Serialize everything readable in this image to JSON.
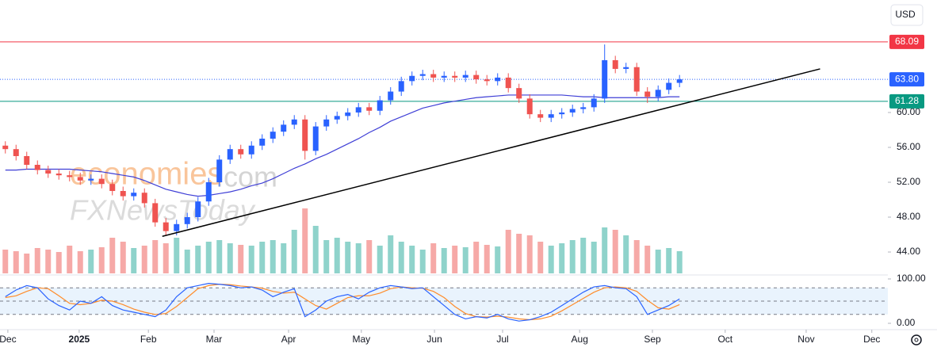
{
  "chart_data": {
    "type": "candlestick",
    "currency": "USD",
    "watermark": [
      "economies",
      ".com",
      "FXNewsToday"
    ],
    "up_color": "#2962ff",
    "down_color": "#ef5350",
    "volume_up_color": "#8fd3cb",
    "volume_down_color": "#f6a9a7",
    "x": [
      0,
      3,
      6,
      9,
      12,
      15,
      18,
      21,
      24,
      27,
      30,
      33,
      36,
      39,
      42,
      45,
      48,
      51,
      54,
      57,
      60,
      63,
      66,
      69,
      72,
      75,
      78,
      81,
      84,
      87,
      90,
      93,
      96,
      99,
      102,
      105,
      108,
      111,
      114,
      117,
      120,
      123,
      126,
      129,
      132,
      135,
      138,
      141,
      144,
      147,
      150,
      153,
      156,
      159,
      162,
      165,
      168,
      171,
      174,
      177,
      180,
      183,
      186,
      189
    ],
    "open": [
      56.2,
      55.8,
      55.0,
      54.0,
      53.4,
      53.0,
      52.8,
      52.6,
      52.2,
      52.4,
      51.8,
      51.0,
      50.4,
      50.8,
      49.6,
      47.4,
      46.4,
      47.2,
      48.0,
      49.8,
      52.0,
      54.6,
      55.8,
      55.2,
      56.2,
      57.0,
      57.8,
      58.6,
      59.2,
      55.6,
      58.4,
      59.2,
      59.6,
      60.0,
      60.6,
      60.2,
      61.4,
      62.4,
      63.6,
      64.2,
      64.4,
      64.0,
      64.2,
      64.0,
      64.3,
      63.8,
      63.6,
      64.0,
      62.8,
      61.6,
      59.8,
      59.4,
      59.8,
      60.0,
      60.4,
      60.6,
      61.6,
      66.0,
      65.0,
      65.2,
      62.4,
      61.8,
      62.6,
      63.4
    ],
    "high": [
      56.7,
      56.3,
      55.5,
      54.5,
      53.9,
      53.5,
      53.3,
      53.1,
      52.9,
      52.9,
      52.3,
      51.5,
      51.3,
      51.3,
      50.1,
      47.9,
      47.7,
      48.5,
      50.3,
      52.5,
      55.1,
      56.3,
      56.3,
      56.7,
      57.5,
      58.3,
      59.1,
      59.7,
      59.7,
      58.9,
      59.7,
      60.1,
      60.5,
      61.1,
      61.1,
      61.9,
      62.9,
      64.1,
      64.7,
      64.9,
      64.9,
      64.7,
      64.7,
      64.8,
      64.8,
      64.3,
      64.5,
      64.5,
      63.3,
      62.1,
      60.3,
      60.3,
      60.5,
      60.9,
      61.1,
      62.1,
      67.8,
      66.5,
      65.7,
      65.7,
      62.9,
      63.1,
      63.9,
      64.3
    ],
    "low": [
      55.3,
      54.5,
      53.5,
      52.9,
      52.5,
      52.3,
      52.1,
      51.7,
      51.7,
      51.3,
      50.5,
      49.9,
      49.9,
      49.1,
      46.9,
      45.9,
      45.9,
      46.7,
      47.5,
      49.3,
      51.5,
      54.1,
      54.7,
      54.7,
      55.7,
      56.5,
      57.3,
      58.1,
      54.6,
      55.1,
      57.9,
      58.7,
      59.1,
      59.5,
      59.7,
      59.7,
      60.9,
      61.9,
      63.1,
      63.7,
      63.5,
      63.5,
      63.5,
      63.5,
      63.3,
      63.1,
      63.1,
      62.3,
      61.1,
      59.3,
      58.9,
      58.9,
      59.3,
      59.5,
      59.9,
      60.1,
      61.1,
      64.5,
      64.5,
      61.9,
      61.1,
      61.3,
      62.1,
      62.9
    ],
    "close": [
      55.8,
      55.0,
      54.0,
      53.4,
      53.0,
      52.8,
      52.6,
      52.2,
      52.4,
      51.8,
      51.0,
      50.4,
      50.8,
      49.6,
      47.4,
      46.4,
      47.2,
      48.0,
      49.8,
      52.0,
      54.6,
      55.8,
      55.2,
      56.2,
      57.0,
      57.8,
      58.6,
      59.2,
      55.6,
      58.4,
      59.2,
      59.6,
      60.0,
      60.6,
      60.2,
      61.4,
      62.4,
      63.6,
      64.2,
      64.4,
      64.0,
      64.2,
      64.0,
      64.3,
      63.8,
      63.6,
      64.0,
      62.8,
      61.6,
      59.8,
      59.4,
      59.8,
      60.0,
      60.4,
      60.6,
      61.6,
      66.0,
      65.0,
      65.2,
      62.4,
      61.8,
      62.6,
      63.4,
      63.8
    ],
    "volume": [
      30,
      28,
      25,
      32,
      30,
      27,
      35,
      28,
      30,
      33,
      45,
      40,
      32,
      35,
      42,
      38,
      45,
      30,
      35,
      40,
      42,
      38,
      36,
      35,
      40,
      42,
      38,
      55,
      82,
      60,
      42,
      45,
      40,
      38,
      42,
      35,
      48,
      40,
      35,
      30,
      38,
      32,
      35,
      33,
      40,
      36,
      34,
      55,
      50,
      48,
      40,
      35,
      38,
      42,
      45,
      40,
      58,
      55,
      48,
      42,
      35,
      30,
      32,
      28
    ],
    "volume_lim": [
      0,
      100
    ],
    "ma": {
      "color": "#3f3fd6",
      "values": [
        53.4,
        53.4,
        53.5,
        53.5,
        53.5,
        53.5,
        53.5,
        53.4,
        53.3,
        53.2,
        53.0,
        52.8,
        52.6,
        52.2,
        51.7,
        51.2,
        50.9,
        50.6,
        50.4,
        50.5,
        50.7,
        50.9,
        51.2,
        51.6,
        51.9,
        52.4,
        53.0,
        53.6,
        54.1,
        54.7,
        55.2,
        55.8,
        56.4,
        57.0,
        57.7,
        58.3,
        59.0,
        59.5,
        60.0,
        60.5,
        60.8,
        61.1,
        61.3,
        61.5,
        61.7,
        61.8,
        61.9,
        62.0,
        62.0,
        62.0,
        62.0,
        62.0,
        62.0,
        61.9,
        61.8,
        61.8,
        61.7,
        61.7,
        61.7,
        61.7,
        61.7,
        61.7,
        61.8,
        61.8
      ]
    },
    "trendline": {
      "color": "#000000",
      "x": [
        44,
        228.4
      ],
      "values": [
        45.8,
        65.0
      ]
    },
    "levels": [
      {
        "value": 68.09,
        "color": "#f23645",
        "style": "solid"
      },
      {
        "value": 63.8,
        "label": "63.80",
        "color": "#2962ff",
        "style": "dotted"
      },
      {
        "value": 61.28,
        "color": "#089981",
        "style": "solid"
      }
    ],
    "xlim": [
      -1.5,
      247.4
    ],
    "xticks": [
      {
        "value": 0.7,
        "label": "Dec"
      },
      {
        "value": 20.7,
        "label": "2025"
      },
      {
        "value": 40.1,
        "label": "Feb"
      },
      {
        "value": 58.5,
        "label": "Mar"
      },
      {
        "value": 79.4,
        "label": "Apr"
      },
      {
        "value": 99.8,
        "label": "May"
      },
      {
        "value": 120.3,
        "label": "Jun"
      },
      {
        "value": 139.4,
        "label": "Jul"
      },
      {
        "value": 161,
        "label": "Aug"
      },
      {
        "value": 181.4,
        "label": "Sep"
      },
      {
        "value": 201.8,
        "label": "Oct"
      },
      {
        "value": 224.5,
        "label": "Nov"
      },
      {
        "value": 242.9,
        "label": "Dec"
      }
    ],
    "ylim": [
      41.55,
      72.9
    ],
    "yticks": [
      {
        "value": 44,
        "label": "44.00"
      },
      {
        "value": 48,
        "label": "48.00"
      },
      {
        "value": 52,
        "label": "52.00"
      },
      {
        "value": 56,
        "label": "56.00"
      },
      {
        "value": 60,
        "label": "60.00"
      }
    ],
    "stoch": {
      "ylim": [
        0,
        100
      ],
      "yticks": [
        {
          "value": 0,
          "label": "0.00"
        },
        {
          "value": 100,
          "label": "100.00"
        }
      ],
      "bands": [
        20,
        50,
        80
      ],
      "k": {
        "color": "#2962ff",
        "values": [
          60,
          75,
          85,
          80,
          55,
          40,
          30,
          50,
          45,
          60,
          40,
          30,
          25,
          20,
          15,
          30,
          60,
          80,
          85,
          90,
          88,
          85,
          80,
          82,
          75,
          60,
          70,
          78,
          15,
          30,
          50,
          60,
          65,
          55,
          70,
          80,
          85,
          82,
          78,
          80,
          60,
          40,
          20,
          10,
          15,
          12,
          20,
          10,
          5,
          8,
          15,
          25,
          40,
          55,
          70,
          82,
          85,
          80,
          78,
          60,
          20,
          30,
          40,
          55
        ]
      },
      "d": {
        "color": "#ff8c2a",
        "values": [
          58,
          62,
          72,
          80,
          78,
          62,
          45,
          42,
          45,
          52,
          50,
          42,
          32,
          25,
          20,
          22,
          38,
          58,
          78,
          85,
          88,
          87,
          84,
          82,
          79,
          72,
          68,
          70,
          55,
          40,
          32,
          45,
          58,
          62,
          62,
          68,
          78,
          82,
          80,
          79,
          72,
          58,
          38,
          22,
          15,
          14,
          16,
          14,
          10,
          8,
          10,
          16,
          28,
          42,
          56,
          70,
          80,
          82,
          80,
          72,
          52,
          35,
          32,
          42
        ]
      }
    }
  }
}
